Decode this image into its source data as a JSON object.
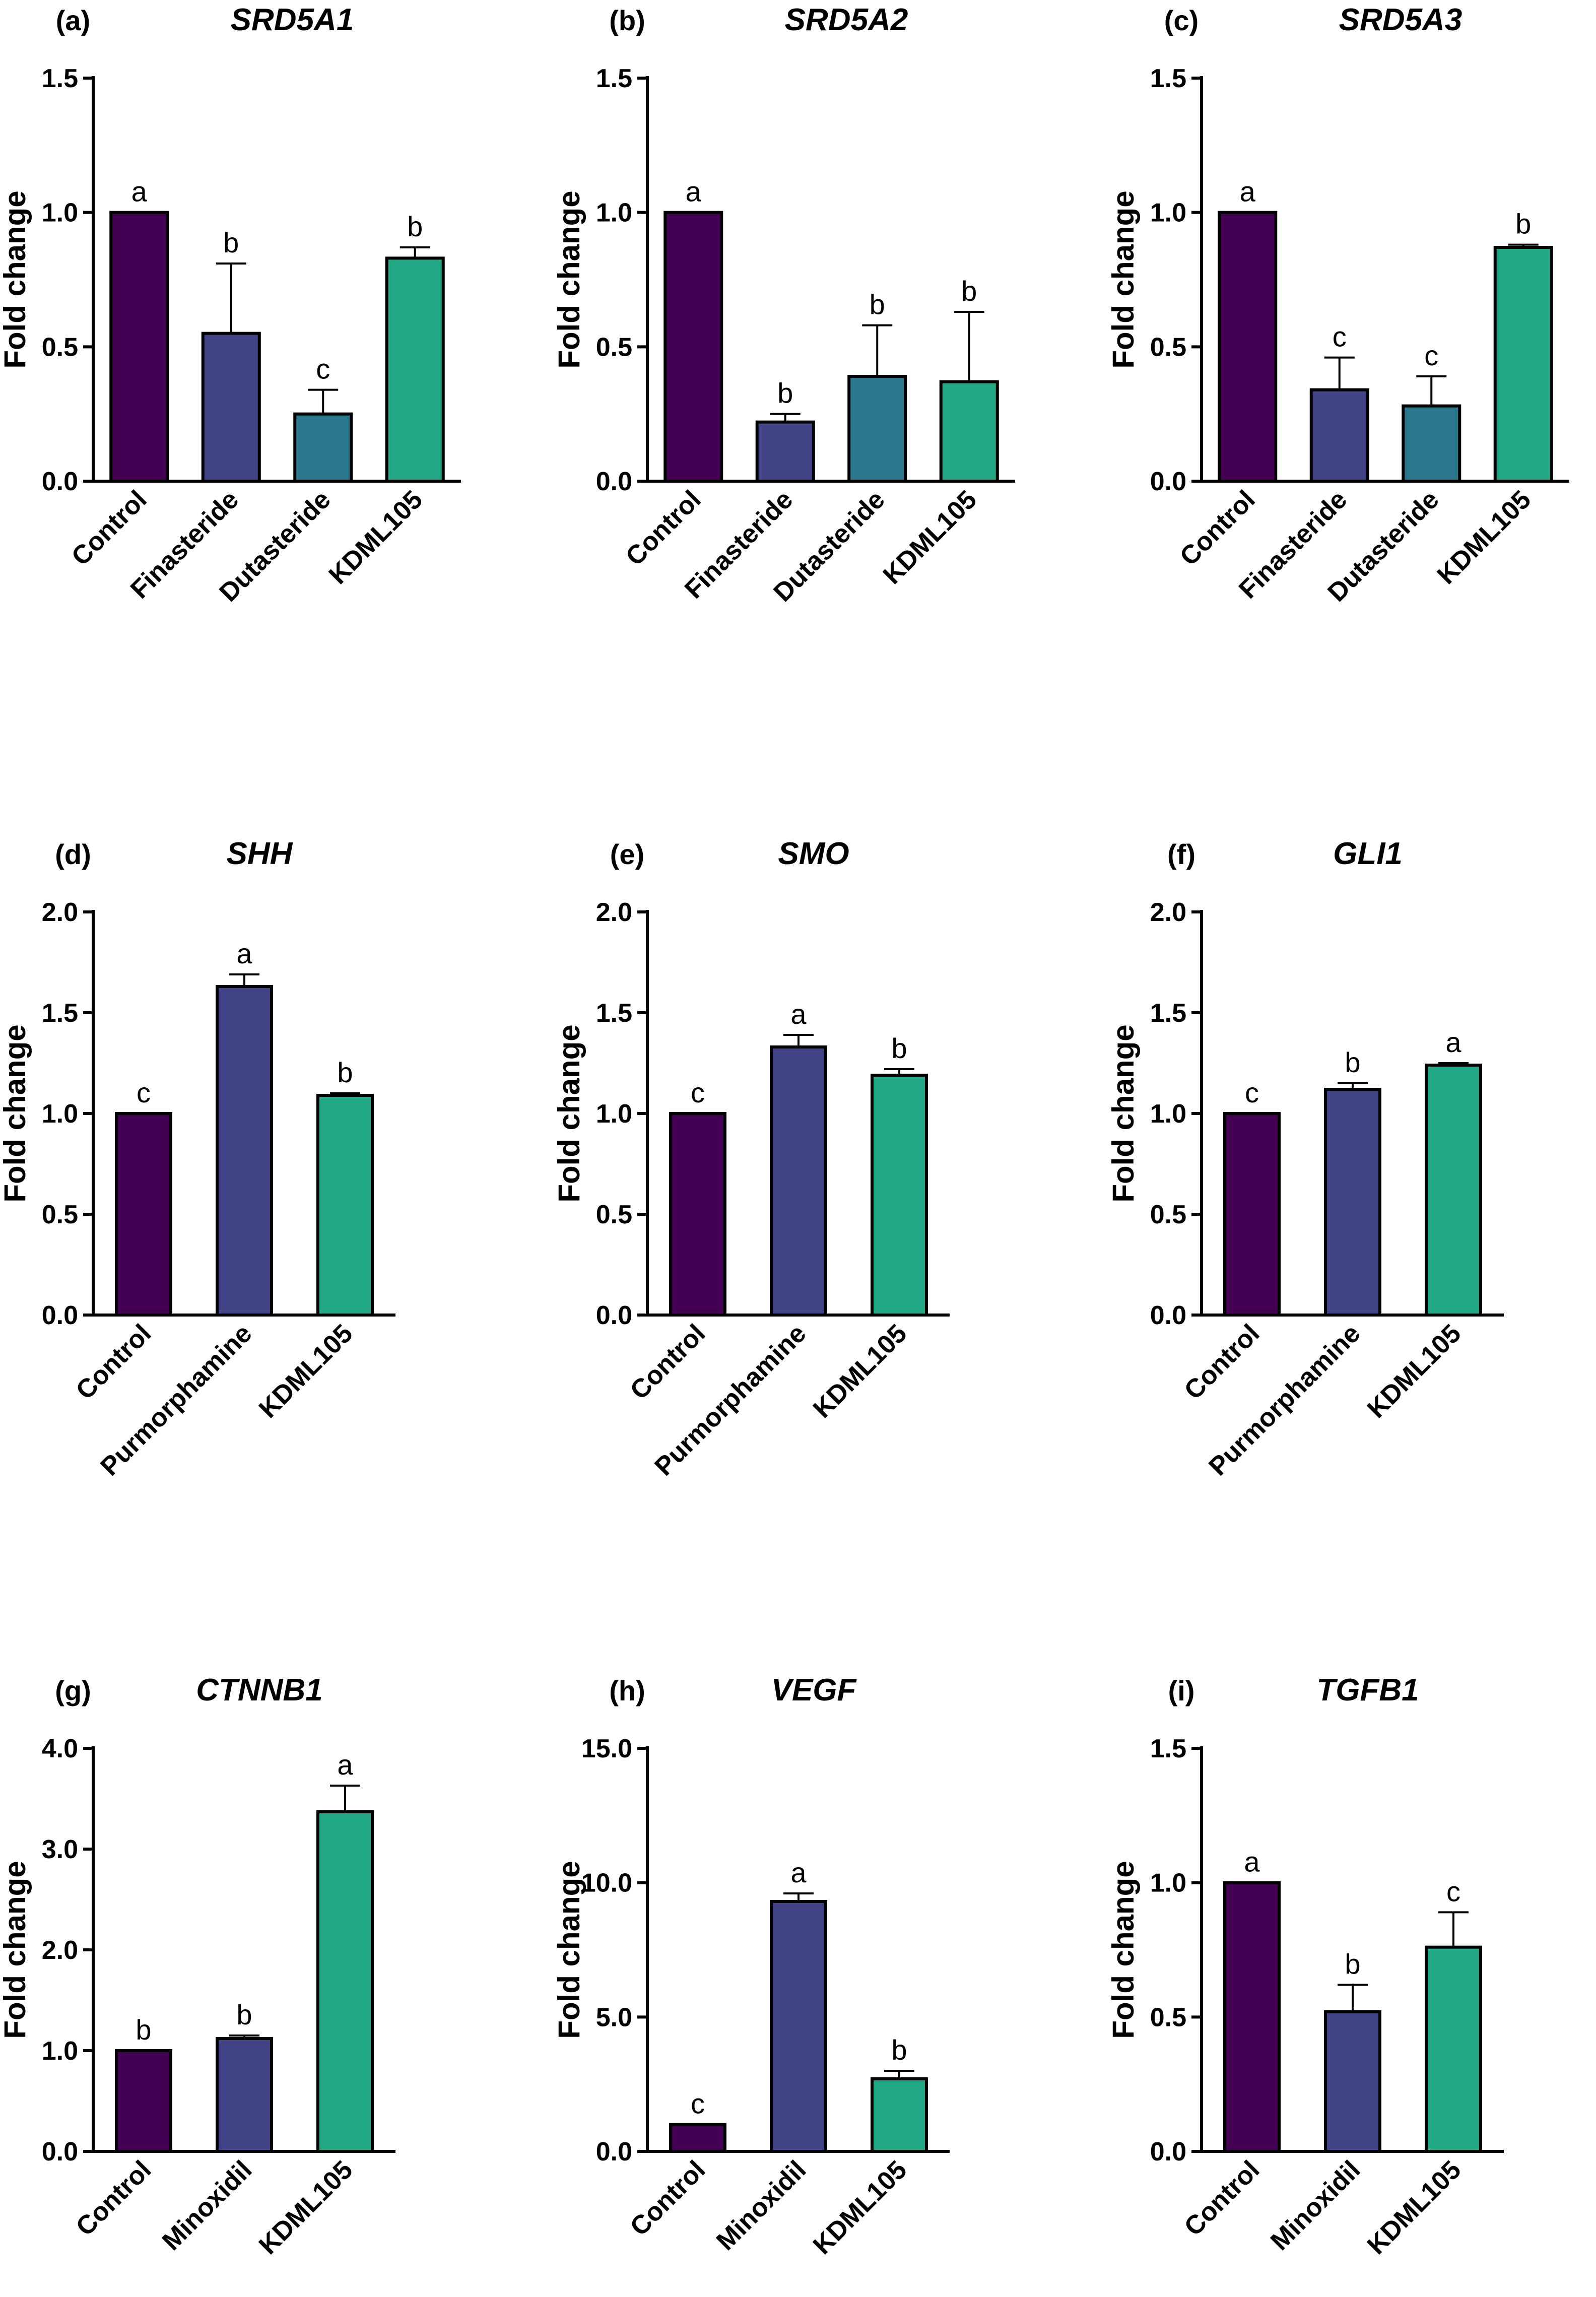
{
  "colors": {
    "Control": "#440154",
    "Finasteride": "#414487",
    "Dutasteride": "#2a788e",
    "Purmorphamine": "#414487",
    "Minoxidil": "#414487",
    "KDML105": "#22a884",
    "axis": "#000000"
  },
  "chart_data": [
    {
      "panel": "(a)",
      "title": "SRD5A1",
      "type": "bar",
      "ylabel": "Fold change",
      "ylim": [
        0,
        1.5
      ],
      "yticks": [
        "0.0",
        "0.5",
        "1.0",
        "1.5"
      ],
      "ytick_values": [
        0,
        0.5,
        1.0,
        1.5
      ],
      "categories": [
        "Control",
        "Finasteride",
        "Dutasteride",
        "KDML105"
      ],
      "values": [
        1.0,
        0.55,
        0.25,
        0.83
      ],
      "errors": [
        0,
        0.26,
        0.09,
        0.04
      ],
      "significance": [
        "a",
        "b",
        "c",
        "b"
      ]
    },
    {
      "panel": "(b)",
      "title": "SRD5A2",
      "type": "bar",
      "ylabel": "Fold change",
      "ylim": [
        0,
        1.5
      ],
      "yticks": [
        "0.0",
        "0.5",
        "1.0",
        "1.5"
      ],
      "ytick_values": [
        0,
        0.5,
        1.0,
        1.5
      ],
      "categories": [
        "Control",
        "Finasteride",
        "Dutasteride",
        "KDML105"
      ],
      "values": [
        1.0,
        0.22,
        0.39,
        0.37
      ],
      "errors": [
        0,
        0.03,
        0.19,
        0.26
      ],
      "significance": [
        "a",
        "b",
        "b",
        "b"
      ]
    },
    {
      "panel": "(c)",
      "title": "SRD5A3",
      "type": "bar",
      "ylabel": "Fold change",
      "ylim": [
        0,
        1.5
      ],
      "yticks": [
        "0.0",
        "0.5",
        "1.0",
        "1.5"
      ],
      "ytick_values": [
        0,
        0.5,
        1.0,
        1.5
      ],
      "categories": [
        "Control",
        "Finasteride",
        "Dutasteride",
        "KDML105"
      ],
      "values": [
        1.0,
        0.34,
        0.28,
        0.87
      ],
      "errors": [
        0,
        0.12,
        0.11,
        0.01
      ],
      "significance": [
        "a",
        "c",
        "c",
        "b"
      ]
    },
    {
      "panel": "(d)",
      "title": "SHH",
      "type": "bar",
      "ylabel": "Fold change",
      "ylim": [
        0,
        2.0
      ],
      "yticks": [
        "0.0",
        "0.5",
        "1.0",
        "1.5",
        "2.0"
      ],
      "ytick_values": [
        0,
        0.5,
        1.0,
        1.5,
        2.0
      ],
      "categories": [
        "Control",
        "Purmorphamine",
        "KDML105"
      ],
      "values": [
        1.0,
        1.63,
        1.09
      ],
      "errors": [
        0,
        0.06,
        0.01
      ],
      "significance": [
        "c",
        "a",
        "b"
      ]
    },
    {
      "panel": "(e)",
      "title": "SMO",
      "type": "bar",
      "ylabel": "Fold change",
      "ylim": [
        0,
        2.0
      ],
      "yticks": [
        "0.0",
        "0.5",
        "1.0",
        "1.5",
        "2.0"
      ],
      "ytick_values": [
        0,
        0.5,
        1.0,
        1.5,
        2.0
      ],
      "categories": [
        "Control",
        "Purmorphamine",
        "KDML105"
      ],
      "values": [
        1.0,
        1.33,
        1.19
      ],
      "errors": [
        0,
        0.06,
        0.03
      ],
      "significance": [
        "c",
        "a",
        "b"
      ]
    },
    {
      "panel": "(f)",
      "title": "GLI1",
      "type": "bar",
      "ylabel": "Fold change",
      "ylim": [
        0,
        2.0
      ],
      "yticks": [
        "0.0",
        "0.5",
        "1.0",
        "1.5",
        "2.0"
      ],
      "ytick_values": [
        0,
        0.5,
        1.0,
        1.5,
        2.0
      ],
      "categories": [
        "Control",
        "Purmorphamine",
        "KDML105"
      ],
      "values": [
        1.0,
        1.12,
        1.24
      ],
      "errors": [
        0,
        0.03,
        0.01
      ],
      "significance": [
        "c",
        "b",
        "a"
      ]
    },
    {
      "panel": "(g)",
      "title": "CTNNB1",
      "type": "bar",
      "ylabel": "Fold change",
      "ylim": [
        0,
        4.0
      ],
      "yticks": [
        "0.0",
        "1.0",
        "2.0",
        "3.0",
        "4.0"
      ],
      "ytick_values": [
        0,
        1.0,
        2.0,
        3.0,
        4.0
      ],
      "categories": [
        "Control",
        "Minoxidil",
        "KDML105"
      ],
      "values": [
        1.0,
        1.12,
        3.37
      ],
      "errors": [
        0,
        0.03,
        0.26
      ],
      "significance": [
        "b",
        "b",
        "a"
      ]
    },
    {
      "panel": "(h)",
      "title": "VEGF",
      "type": "bar",
      "ylabel": "Fold change",
      "ylim": [
        0,
        15.0
      ],
      "yticks": [
        "0.0",
        "5.0",
        "10.0",
        "15.0"
      ],
      "ytick_values": [
        0,
        5.0,
        10.0,
        15.0
      ],
      "categories": [
        "Control",
        "Minoxidil",
        "KDML105"
      ],
      "values": [
        1.0,
        9.3,
        2.7
      ],
      "errors": [
        0,
        0.3,
        0.3
      ],
      "significance": [
        "c",
        "a",
        "b"
      ]
    },
    {
      "panel": "(i)",
      "title": "TGFB1",
      "type": "bar",
      "ylabel": "Fold change",
      "ylim": [
        0,
        1.5
      ],
      "yticks": [
        "0.0",
        "0.5",
        "1.0",
        "1.5"
      ],
      "ytick_values": [
        0,
        0.5,
        1.0,
        1.5
      ],
      "categories": [
        "Control",
        "Minoxidil",
        "KDML105"
      ],
      "values": [
        1.0,
        0.52,
        0.76
      ],
      "errors": [
        0,
        0.1,
        0.13
      ],
      "significance": [
        "a",
        "b",
        "c"
      ]
    }
  ]
}
